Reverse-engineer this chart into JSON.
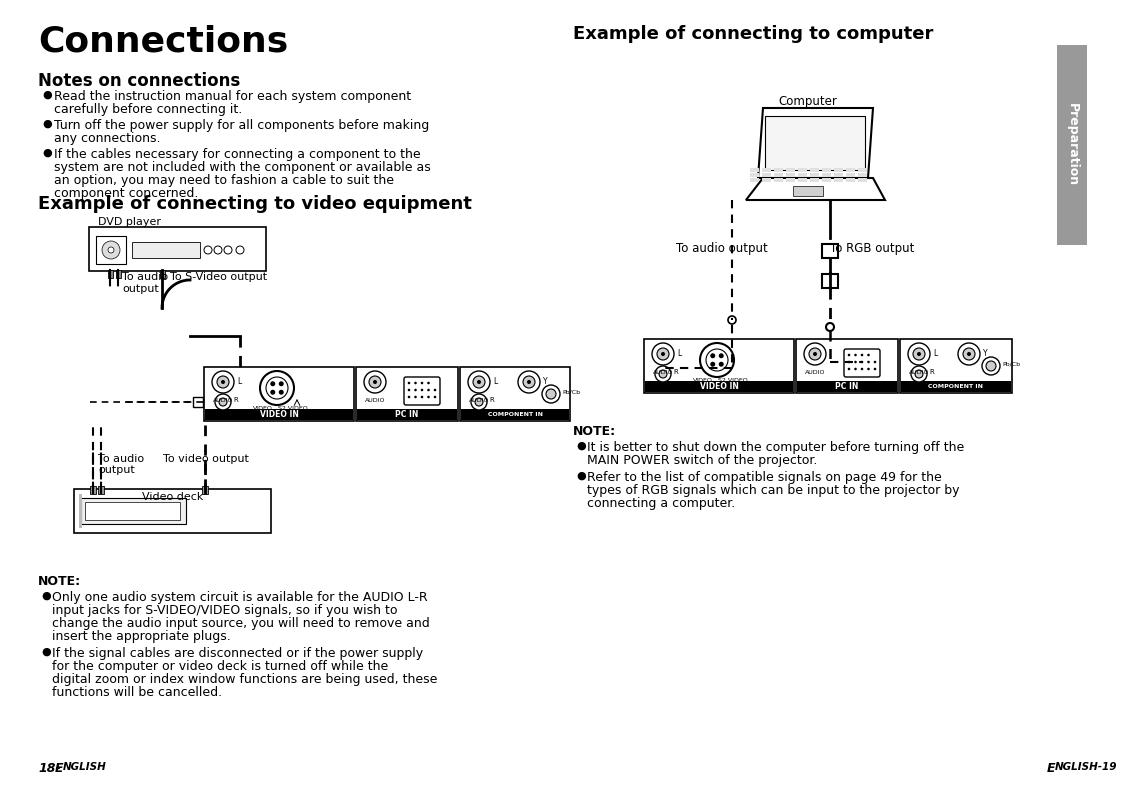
{
  "title": "Connections",
  "subtitle_notes": "Notes on connections",
  "subtitle_video": "Example of connecting to video equipment",
  "subtitle_computer": "Example of connecting to computer",
  "notes_bullets": [
    "Read the instruction manual for each system component carefully before connecting it.",
    "Turn off the power supply for all components before making any connections.",
    "If the cables necessary for connecting a component to the system are not included with the component or available as an option, you may need to fashion a cable to suit the component concerned."
  ],
  "note_video_bullets": [
    "Only one audio system circuit is available for the AUDIO L-R input jacks for S-VIDEO/VIDEO signals, so if you wish to change the audio input source, you will need to remove and insert the appropriate plugs.",
    "If the signal cables are disconnected or if the power supply for the computer or video deck is turned off while the digital zoom or index window functions are being used, these functions will be cancelled."
  ],
  "note_computer_bullets": [
    "It is better to shut down the computer before turning off the MAIN POWER switch of the projector.",
    "Refer to the list of compatible signals on page 49 for the types of RGB signals which can be input to the projector by connecting a computer."
  ],
  "footer_left": "18-",
  "footer_left_italic": "E",
  "footer_left_rest": "NGLISH",
  "footer_right_italic": "E",
  "footer_right_rest": "NGLISH-19",
  "sidebar_text": "Preparation",
  "bg_color": "#ffffff",
  "text_color": "#000000",
  "sidebar_color": "#999999"
}
